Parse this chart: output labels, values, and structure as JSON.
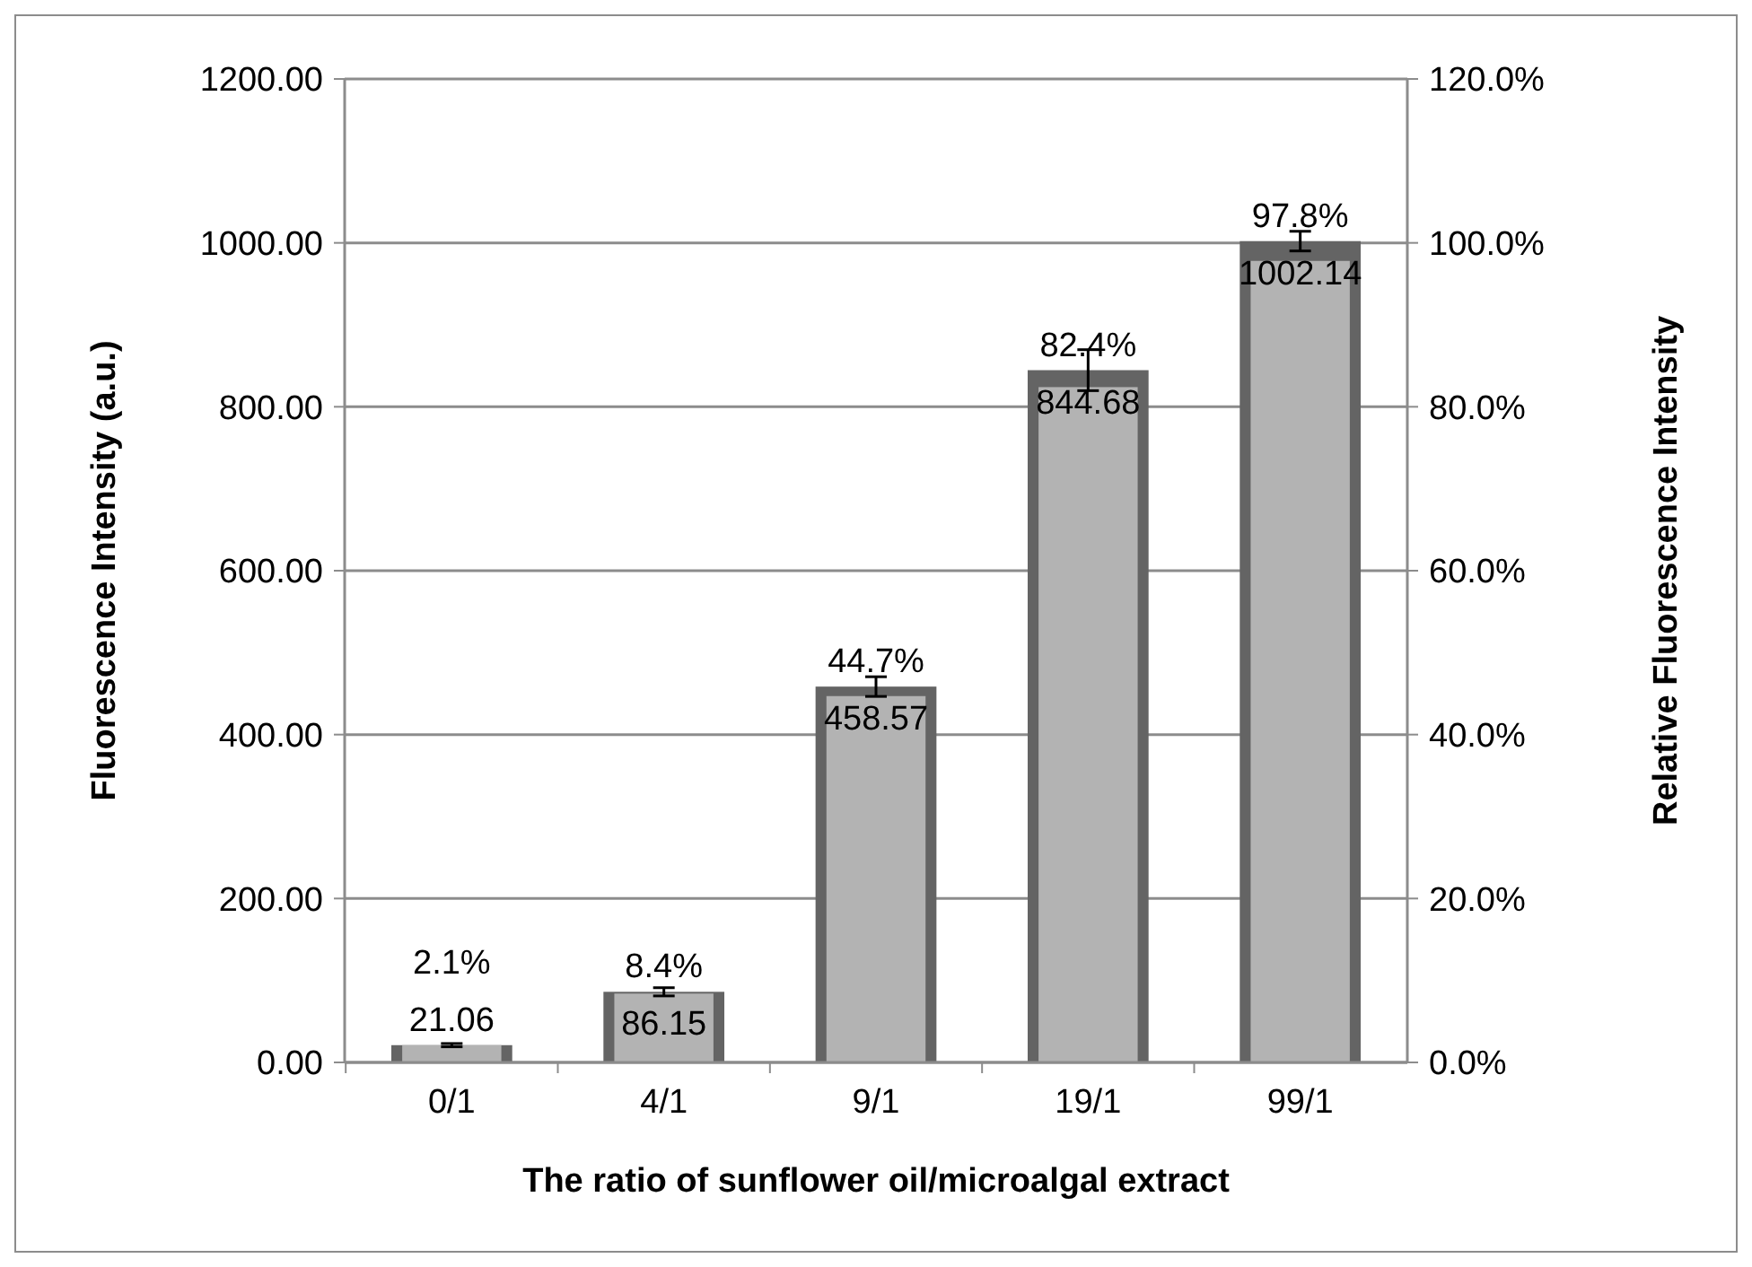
{
  "chart_data": {
    "type": "bar",
    "xlabel": "The ratio of sunflower oil/microalgal extract",
    "ylabel": "Fluorescence Intensity (a.u.)",
    "y2label": "Relative Fluorescence Intensity",
    "categories": [
      "0/1",
      "4/1",
      "9/1",
      "19/1",
      "99/1"
    ],
    "series": [
      {
        "color": "#646464",
        "values": [
          21.06,
          86.15,
          458.57,
          844.68,
          1002.14
        ],
        "errors": [
          2,
          5,
          12,
          25,
          12
        ],
        "value_labels": [
          "21.06",
          "86.15",
          "458.57",
          "844.68",
          "1002.14"
        ]
      },
      {
        "color": "#b3b3b3",
        "axis": "y2",
        "values": [
          2.1,
          8.4,
          44.7,
          82.4,
          97.8
        ],
        "value_labels": [
          "2.1%",
          "8.4%",
          "44.7%",
          "82.4%",
          "97.8%"
        ]
      }
    ],
    "ylim": [
      0,
      1200
    ],
    "yticks": [
      {
        "value": 0,
        "label": "0.00"
      },
      {
        "value": 200,
        "label": "200.00"
      },
      {
        "value": 400,
        "label": "400.00"
      },
      {
        "value": 600,
        "label": "600.00"
      },
      {
        "value": 800,
        "label": "800.00"
      },
      {
        "value": 1000,
        "label": "1000.00"
      },
      {
        "value": 1200,
        "label": "1200.00"
      }
    ],
    "y2lim": [
      0,
      120
    ],
    "y2ticks": [
      {
        "value": 0,
        "label": "0.0%"
      },
      {
        "value": 20,
        "label": "20.0%"
      },
      {
        "value": 40,
        "label": "40.0%"
      },
      {
        "value": 60,
        "label": "60.0%"
      },
      {
        "value": 80,
        "label": "80.0%"
      },
      {
        "value": 100,
        "label": "100.0%"
      },
      {
        "value": 120,
        "label": "120.0%"
      }
    ],
    "grid": "y"
  }
}
